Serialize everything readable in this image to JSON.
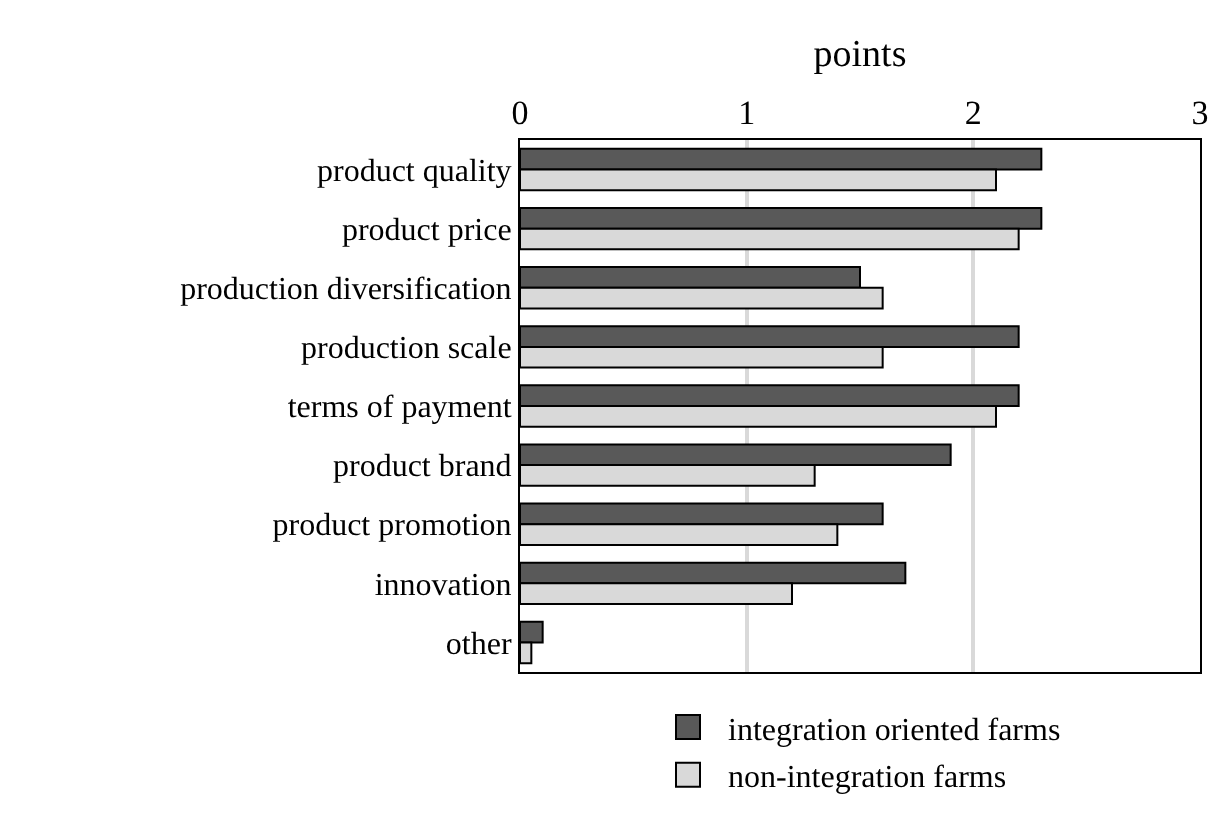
{
  "chart_data": {
    "type": "bar",
    "orientation": "horizontal",
    "xlabel": "points",
    "categories": [
      "product quality",
      "product price",
      "production diversification",
      "production scale",
      "terms of payment",
      "product brand",
      "product promotion",
      "innovation",
      "other"
    ],
    "series": [
      {
        "name": "integration oriented farms",
        "color": "#595959",
        "values": [
          2.3,
          2.3,
          1.5,
          2.2,
          2.2,
          1.9,
          1.6,
          1.7,
          0.1
        ]
      },
      {
        "name": "non-integration farms",
        "color": "#d9d9d9",
        "values": [
          2.1,
          2.2,
          1.6,
          1.6,
          2.1,
          1.3,
          1.4,
          1.2,
          0.05
        ]
      }
    ],
    "xlim": [
      0,
      3
    ],
    "xticks": [
      0,
      1,
      2,
      3
    ],
    "grid": "x",
    "legend": "bottom"
  }
}
